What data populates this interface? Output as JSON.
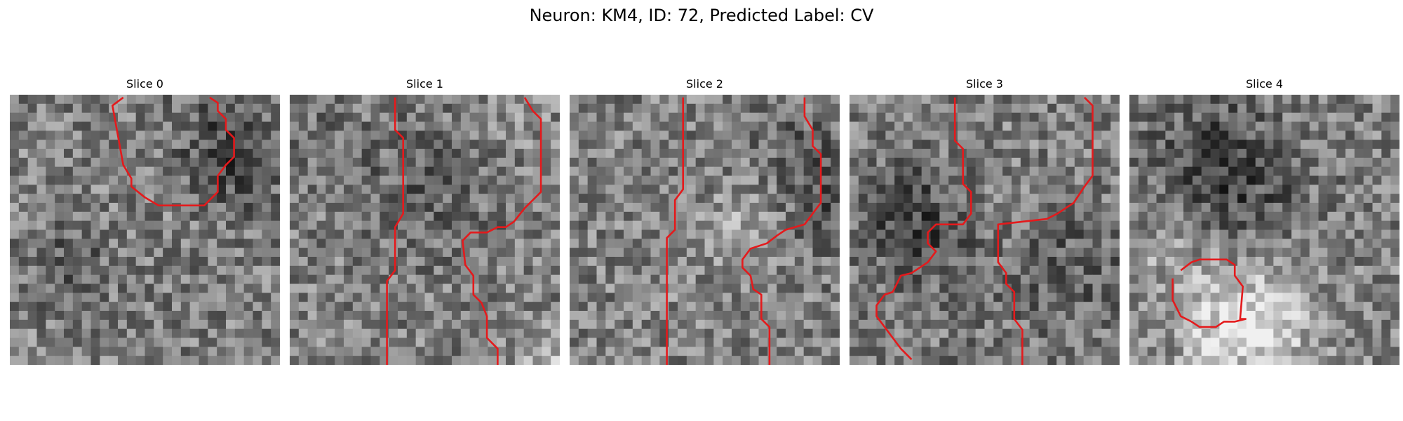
{
  "figure": {
    "title": "Neuron: KM4, ID: 72, Predicted Label: CV"
  },
  "panels": [
    {
      "title": "Slice 0",
      "seed": 11,
      "contour_color": "#e41a1c",
      "contours": [
        [
          [
            0.42,
            0.01
          ],
          [
            0.38,
            0.04
          ],
          [
            0.42,
            0.26
          ],
          [
            0.45,
            0.31
          ],
          [
            0.45,
            0.34
          ],
          [
            0.5,
            0.38
          ],
          [
            0.55,
            0.41
          ],
          [
            0.72,
            0.41
          ],
          [
            0.77,
            0.36
          ],
          [
            0.77,
            0.3
          ],
          [
            0.8,
            0.26
          ],
          [
            0.83,
            0.23
          ],
          [
            0.83,
            0.16
          ],
          [
            0.8,
            0.13
          ],
          [
            0.8,
            0.09
          ],
          [
            0.77,
            0.06
          ],
          [
            0.77,
            0.03
          ],
          [
            0.74,
            0.01
          ]
        ]
      ]
    },
    {
      "title": "Slice 1",
      "seed": 23,
      "contour_color": "#e41a1c",
      "contours": [
        [
          [
            0.39,
            0.01
          ],
          [
            0.39,
            0.13
          ],
          [
            0.42,
            0.16
          ],
          [
            0.42,
            0.44
          ],
          [
            0.39,
            0.49
          ],
          [
            0.39,
            0.65
          ],
          [
            0.36,
            0.69
          ],
          [
            0.36,
            1.0
          ]
        ],
        [
          [
            0.87,
            0.01
          ],
          [
            0.9,
            0.06
          ],
          [
            0.93,
            0.09
          ],
          [
            0.93,
            0.36
          ],
          [
            0.87,
            0.42
          ],
          [
            0.83,
            0.47
          ],
          [
            0.8,
            0.49
          ],
          [
            0.77,
            0.49
          ],
          [
            0.73,
            0.51
          ],
          [
            0.67,
            0.51
          ],
          [
            0.64,
            0.54
          ],
          [
            0.65,
            0.63
          ],
          [
            0.68,
            0.67
          ],
          [
            0.68,
            0.74
          ],
          [
            0.71,
            0.77
          ],
          [
            0.73,
            0.82
          ],
          [
            0.73,
            0.9
          ],
          [
            0.77,
            0.94
          ],
          [
            0.77,
            1.0
          ]
        ]
      ]
    },
    {
      "title": "Slice 2",
      "seed": 37,
      "contour_color": "#e41a1c",
      "contours": [
        [
          [
            0.42,
            0.01
          ],
          [
            0.42,
            0.35
          ],
          [
            0.39,
            0.39
          ],
          [
            0.39,
            0.5
          ],
          [
            0.36,
            0.53
          ],
          [
            0.36,
            1.0
          ]
        ],
        [
          [
            0.87,
            0.01
          ],
          [
            0.87,
            0.08
          ],
          [
            0.9,
            0.13
          ],
          [
            0.9,
            0.19
          ],
          [
            0.93,
            0.22
          ],
          [
            0.93,
            0.4
          ],
          [
            0.9,
            0.44
          ],
          [
            0.87,
            0.48
          ],
          [
            0.8,
            0.5
          ],
          [
            0.77,
            0.52
          ],
          [
            0.73,
            0.55
          ],
          [
            0.67,
            0.57
          ],
          [
            0.64,
            0.61
          ],
          [
            0.64,
            0.64
          ],
          [
            0.67,
            0.67
          ],
          [
            0.68,
            0.72
          ],
          [
            0.71,
            0.74
          ],
          [
            0.71,
            0.83
          ],
          [
            0.74,
            0.86
          ],
          [
            0.74,
            1.0
          ]
        ]
      ]
    },
    {
      "title": "Slice 3",
      "seed": 41,
      "contour_color": "#e41a1c",
      "contours": [
        [
          [
            0.39,
            0.01
          ],
          [
            0.39,
            0.17
          ],
          [
            0.42,
            0.2
          ],
          [
            0.42,
            0.33
          ],
          [
            0.45,
            0.36
          ],
          [
            0.45,
            0.44
          ],
          [
            0.42,
            0.48
          ],
          [
            0.32,
            0.48
          ],
          [
            0.29,
            0.51
          ],
          [
            0.29,
            0.55
          ],
          [
            0.32,
            0.58
          ],
          [
            0.29,
            0.62
          ],
          [
            0.26,
            0.64
          ],
          [
            0.23,
            0.66
          ],
          [
            0.19,
            0.67
          ],
          [
            0.16,
            0.73
          ],
          [
            0.13,
            0.74
          ],
          [
            0.1,
            0.78
          ],
          [
            0.1,
            0.82
          ],
          [
            0.13,
            0.86
          ],
          [
            0.16,
            0.9
          ],
          [
            0.19,
            0.94
          ],
          [
            0.23,
            0.98
          ]
        ],
        [
          [
            0.87,
            0.01
          ],
          [
            0.9,
            0.04
          ],
          [
            0.9,
            0.3
          ],
          [
            0.87,
            0.34
          ],
          [
            0.83,
            0.4
          ],
          [
            0.77,
            0.44
          ],
          [
            0.73,
            0.46
          ],
          [
            0.55,
            0.48
          ],
          [
            0.55,
            0.55
          ],
          [
            0.55,
            0.62
          ],
          [
            0.58,
            0.66
          ],
          [
            0.58,
            0.7
          ],
          [
            0.61,
            0.73
          ],
          [
            0.61,
            0.83
          ],
          [
            0.64,
            0.87
          ],
          [
            0.64,
            1.0
          ]
        ]
      ]
    },
    {
      "title": "Slice 4",
      "seed": 53,
      "contour_color": "#e41a1c",
      "contours": [
        [
          [
            0.16,
            0.68
          ],
          [
            0.16,
            0.76
          ],
          [
            0.19,
            0.82
          ],
          [
            0.23,
            0.84
          ],
          [
            0.26,
            0.86
          ],
          [
            0.32,
            0.86
          ],
          [
            0.35,
            0.84
          ],
          [
            0.39,
            0.84
          ],
          [
            0.43,
            0.83
          ],
          [
            0.41,
            0.83
          ],
          [
            0.42,
            0.71
          ],
          [
            0.39,
            0.67
          ],
          [
            0.39,
            0.63
          ],
          [
            0.36,
            0.61
          ],
          [
            0.32,
            0.61
          ],
          [
            0.26,
            0.61
          ],
          [
            0.23,
            0.62
          ],
          [
            0.19,
            0.65
          ]
        ]
      ]
    }
  ]
}
